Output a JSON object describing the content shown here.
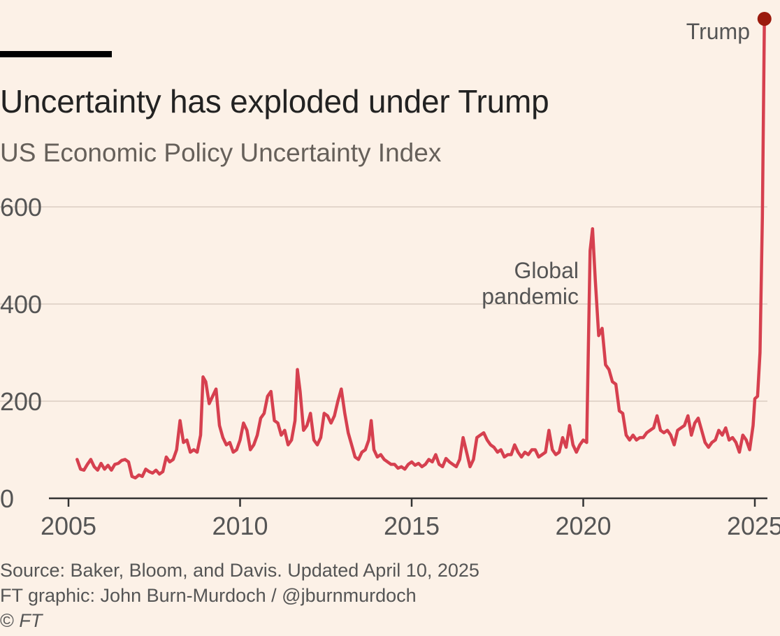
{
  "title": "Uncertainty has exploded under Trump",
  "subtitle": "US Economic Policy Uncertainty Index",
  "footer": {
    "source": "Source: Baker, Bloom, and Davis. Updated April 10, 2025",
    "credit": "FT graphic: John Burn-Murdoch / @jburnmurdoch",
    "copyright_symbol": "©",
    "copyright_name": "FT"
  },
  "colors": {
    "background": "#fcf1e7",
    "line": "#d6404f",
    "endpoint": "#9b1a0d",
    "grid": "#e3d6cb",
    "axis": "#333333"
  },
  "chart_data": {
    "type": "line",
    "title": "Uncertainty has exploded under Trump",
    "subtitle": "US Economic Policy Uncertainty Index",
    "xlabel": "",
    "ylabel": "",
    "xlim": [
      2004.9,
      2025.3
    ],
    "ylim": [
      0,
      620
    ],
    "x_ticks": [
      2005,
      2010,
      2015,
      2020,
      2025
    ],
    "y_ticks": [
      0,
      200,
      400,
      600
    ],
    "grid": true,
    "annotations": [
      {
        "id": "pandemic",
        "lines": [
          "Global",
          "pandemic"
        ],
        "x": 2020.2,
        "y": 555
      },
      {
        "id": "trump",
        "lines": [
          "Trump"
        ],
        "x": 2025.2,
        "y": 990
      }
    ],
    "series": [
      {
        "points": [
          [
            2005.25,
            80
          ],
          [
            2005.35,
            60
          ],
          [
            2005.45,
            58
          ],
          [
            2005.55,
            70
          ],
          [
            2005.65,
            80
          ],
          [
            2005.75,
            65
          ],
          [
            2005.85,
            58
          ],
          [
            2005.95,
            72
          ],
          [
            2006.05,
            60
          ],
          [
            2006.15,
            68
          ],
          [
            2006.25,
            58
          ],
          [
            2006.35,
            70
          ],
          [
            2006.45,
            72
          ],
          [
            2006.55,
            78
          ],
          [
            2006.65,
            80
          ],
          [
            2006.75,
            75
          ],
          [
            2006.85,
            45
          ],
          [
            2006.95,
            42
          ],
          [
            2007.05,
            48
          ],
          [
            2007.15,
            45
          ],
          [
            2007.25,
            60
          ],
          [
            2007.35,
            55
          ],
          [
            2007.45,
            52
          ],
          [
            2007.55,
            58
          ],
          [
            2007.65,
            50
          ],
          [
            2007.75,
            55
          ],
          [
            2007.85,
            85
          ],
          [
            2007.95,
            75
          ],
          [
            2008.05,
            80
          ],
          [
            2008.15,
            100
          ],
          [
            2008.25,
            160
          ],
          [
            2008.35,
            115
          ],
          [
            2008.45,
            120
          ],
          [
            2008.55,
            95
          ],
          [
            2008.65,
            100
          ],
          [
            2008.75,
            95
          ],
          [
            2008.85,
            130
          ],
          [
            2008.92,
            250
          ],
          [
            2009.0,
            240
          ],
          [
            2009.1,
            195
          ],
          [
            2009.2,
            210
          ],
          [
            2009.3,
            225
          ],
          [
            2009.4,
            150
          ],
          [
            2009.5,
            125
          ],
          [
            2009.6,
            110
          ],
          [
            2009.7,
            115
          ],
          [
            2009.8,
            95
          ],
          [
            2009.9,
            100
          ],
          [
            2010.0,
            120
          ],
          [
            2010.1,
            155
          ],
          [
            2010.2,
            140
          ],
          [
            2010.3,
            100
          ],
          [
            2010.4,
            110
          ],
          [
            2010.5,
            130
          ],
          [
            2010.6,
            165
          ],
          [
            2010.7,
            175
          ],
          [
            2010.8,
            210
          ],
          [
            2010.9,
            220
          ],
          [
            2011.0,
            160
          ],
          [
            2011.1,
            155
          ],
          [
            2011.2,
            130
          ],
          [
            2011.3,
            140
          ],
          [
            2011.4,
            110
          ],
          [
            2011.5,
            120
          ],
          [
            2011.6,
            160
          ],
          [
            2011.67,
            265
          ],
          [
            2011.75,
            220
          ],
          [
            2011.85,
            140
          ],
          [
            2011.95,
            150
          ],
          [
            2012.05,
            175
          ],
          [
            2012.15,
            120
          ],
          [
            2012.25,
            110
          ],
          [
            2012.35,
            125
          ],
          [
            2012.45,
            175
          ],
          [
            2012.55,
            170
          ],
          [
            2012.65,
            155
          ],
          [
            2012.75,
            170
          ],
          [
            2012.85,
            200
          ],
          [
            2012.95,
            225
          ],
          [
            2013.05,
            175
          ],
          [
            2013.15,
            135
          ],
          [
            2013.25,
            110
          ],
          [
            2013.35,
            85
          ],
          [
            2013.45,
            80
          ],
          [
            2013.55,
            95
          ],
          [
            2013.65,
            100
          ],
          [
            2013.75,
            120
          ],
          [
            2013.82,
            160
          ],
          [
            2013.9,
            100
          ],
          [
            2014.0,
            85
          ],
          [
            2014.1,
            90
          ],
          [
            2014.2,
            80
          ],
          [
            2014.3,
            75
          ],
          [
            2014.4,
            70
          ],
          [
            2014.5,
            70
          ],
          [
            2014.6,
            62
          ],
          [
            2014.7,
            65
          ],
          [
            2014.8,
            60
          ],
          [
            2014.9,
            70
          ],
          [
            2015.0,
            75
          ],
          [
            2015.1,
            68
          ],
          [
            2015.2,
            72
          ],
          [
            2015.3,
            65
          ],
          [
            2015.4,
            70
          ],
          [
            2015.5,
            80
          ],
          [
            2015.6,
            75
          ],
          [
            2015.7,
            90
          ],
          [
            2015.8,
            70
          ],
          [
            2015.9,
            65
          ],
          [
            2016.0,
            82
          ],
          [
            2016.1,
            75
          ],
          [
            2016.2,
            70
          ],
          [
            2016.3,
            65
          ],
          [
            2016.4,
            80
          ],
          [
            2016.5,
            125
          ],
          [
            2016.6,
            95
          ],
          [
            2016.7,
            65
          ],
          [
            2016.8,
            80
          ],
          [
            2016.9,
            125
          ],
          [
            2017.0,
            130
          ],
          [
            2017.1,
            135
          ],
          [
            2017.2,
            120
          ],
          [
            2017.3,
            110
          ],
          [
            2017.4,
            105
          ],
          [
            2017.5,
            95
          ],
          [
            2017.6,
            100
          ],
          [
            2017.7,
            85
          ],
          [
            2017.8,
            90
          ],
          [
            2017.9,
            90
          ],
          [
            2018.0,
            110
          ],
          [
            2018.1,
            95
          ],
          [
            2018.2,
            85
          ],
          [
            2018.3,
            95
          ],
          [
            2018.4,
            90
          ],
          [
            2018.5,
            100
          ],
          [
            2018.6,
            100
          ],
          [
            2018.7,
            85
          ],
          [
            2018.8,
            90
          ],
          [
            2018.9,
            95
          ],
          [
            2019.0,
            140
          ],
          [
            2019.1,
            100
          ],
          [
            2019.2,
            90
          ],
          [
            2019.3,
            95
          ],
          [
            2019.4,
            125
          ],
          [
            2019.5,
            105
          ],
          [
            2019.6,
            150
          ],
          [
            2019.7,
            110
          ],
          [
            2019.8,
            95
          ],
          [
            2019.9,
            110
          ],
          [
            2020.0,
            120
          ],
          [
            2020.1,
            115
          ],
          [
            2020.2,
            510
          ],
          [
            2020.27,
            555
          ],
          [
            2020.35,
            450
          ],
          [
            2020.45,
            335
          ],
          [
            2020.55,
            350
          ],
          [
            2020.65,
            275
          ],
          [
            2020.75,
            265
          ],
          [
            2020.85,
            240
          ],
          [
            2020.95,
            235
          ],
          [
            2021.05,
            180
          ],
          [
            2021.15,
            175
          ],
          [
            2021.25,
            130
          ],
          [
            2021.35,
            120
          ],
          [
            2021.45,
            130
          ],
          [
            2021.55,
            120
          ],
          [
            2021.65,
            125
          ],
          [
            2021.75,
            125
          ],
          [
            2021.85,
            135
          ],
          [
            2021.95,
            140
          ],
          [
            2022.05,
            145
          ],
          [
            2022.15,
            170
          ],
          [
            2022.25,
            140
          ],
          [
            2022.35,
            135
          ],
          [
            2022.45,
            140
          ],
          [
            2022.55,
            130
          ],
          [
            2022.65,
            110
          ],
          [
            2022.75,
            140
          ],
          [
            2022.85,
            145
          ],
          [
            2022.95,
            150
          ],
          [
            2023.05,
            170
          ],
          [
            2023.15,
            130
          ],
          [
            2023.25,
            155
          ],
          [
            2023.35,
            165
          ],
          [
            2023.45,
            140
          ],
          [
            2023.55,
            115
          ],
          [
            2023.65,
            105
          ],
          [
            2023.75,
            115
          ],
          [
            2023.85,
            120
          ],
          [
            2023.95,
            140
          ],
          [
            2024.05,
            130
          ],
          [
            2024.15,
            145
          ],
          [
            2024.25,
            120
          ],
          [
            2024.35,
            125
          ],
          [
            2024.45,
            115
          ],
          [
            2024.55,
            95
          ],
          [
            2024.65,
            130
          ],
          [
            2024.75,
            120
          ],
          [
            2024.85,
            100
          ],
          [
            2024.95,
            150
          ],
          [
            2025.0,
            205
          ],
          [
            2025.08,
            210
          ],
          [
            2025.15,
            300
          ],
          [
            2025.22,
            580
          ],
          [
            2025.28,
            990
          ]
        ]
      }
    ]
  }
}
